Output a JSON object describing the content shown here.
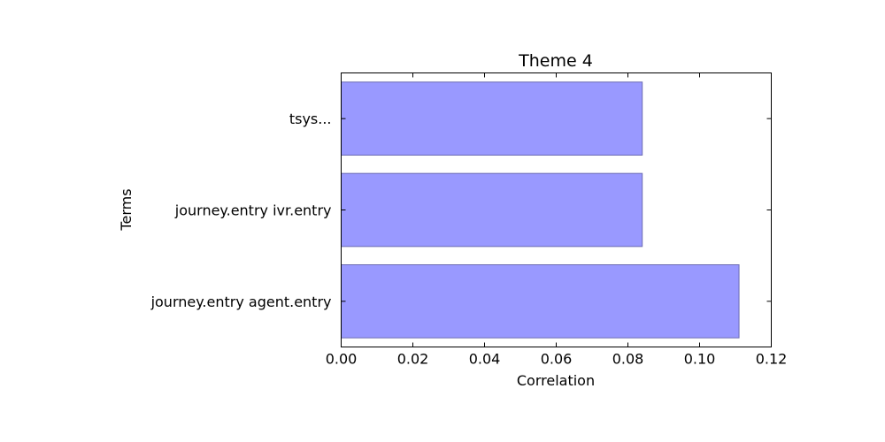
{
  "chart_data": {
    "type": "bar",
    "orientation": "horizontal",
    "title": "Theme 4",
    "xlabel": "Correlation",
    "ylabel": "Terms",
    "categories": [
      "journey.entry agent.entry",
      "journey.entry ivr.entry",
      "tsys..."
    ],
    "values": [
      0.111,
      0.084,
      0.084
    ],
    "xlim": [
      0,
      0.12
    ],
    "xticks": [
      "0.00",
      "0.02",
      "0.04",
      "0.06",
      "0.08",
      "0.10",
      "0.12"
    ],
    "grid": false,
    "legend": "none",
    "colors": {
      "bar_fill": "#9999ff",
      "bar_edge": "#6b6bb3",
      "axis": "#000000"
    }
  }
}
